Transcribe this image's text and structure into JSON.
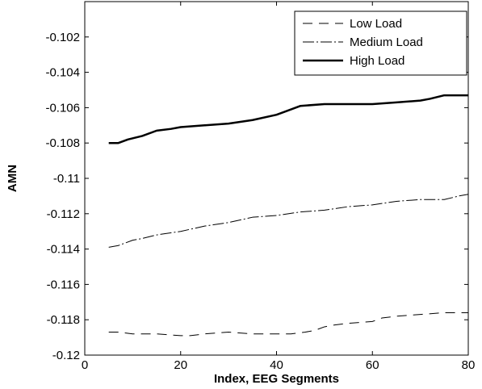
{
  "chart_data": {
    "type": "line",
    "title": "",
    "xlabel": "Index, EEG Segments",
    "ylabel": "AMN",
    "xlim": [
      0,
      80
    ],
    "ylim": [
      -0.12,
      -0.1
    ],
    "x_ticks": [
      0,
      20,
      40,
      60,
      80
    ],
    "x_tick_labels": [
      "0",
      "20",
      "40",
      "60",
      "80"
    ],
    "y_ticks": [
      -0.12,
      -0.118,
      -0.116,
      -0.114,
      -0.112,
      -0.11,
      -0.108,
      -0.106,
      -0.104,
      -0.102
    ],
    "y_tick_labels": [
      "-0.12",
      "-0.118",
      "-0.116",
      "-0.114",
      "-0.112",
      "-0.11",
      "-0.108",
      "-0.106",
      "-0.104",
      "-0.102"
    ],
    "grid": false,
    "legend_position": "top-right",
    "series": [
      {
        "name": "Low Load",
        "style": "dashed",
        "line_width": "thin",
        "points": [
          [
            5,
            -0.1187
          ],
          [
            7,
            -0.1187
          ],
          [
            10,
            -0.1188
          ],
          [
            15,
            -0.1188
          ],
          [
            20,
            -0.1189
          ],
          [
            22,
            -0.1189
          ],
          [
            25,
            -0.1188
          ],
          [
            30,
            -0.1187
          ],
          [
            35,
            -0.1188
          ],
          [
            40,
            -0.1188
          ],
          [
            43,
            -0.1188
          ],
          [
            46,
            -0.1187
          ],
          [
            48,
            -0.1186
          ],
          [
            50,
            -0.1184
          ],
          [
            52,
            -0.1183
          ],
          [
            55,
            -0.1182
          ],
          [
            60,
            -0.1181
          ],
          [
            62,
            -0.1179
          ],
          [
            65,
            -0.1178
          ],
          [
            70,
            -0.1177
          ],
          [
            75,
            -0.1176
          ],
          [
            80,
            -0.1176
          ]
        ]
      },
      {
        "name": "Medium Load",
        "style": "dashdot",
        "line_width": "thin",
        "points": [
          [
            5,
            -0.1139
          ],
          [
            7,
            -0.1138
          ],
          [
            10,
            -0.1135
          ],
          [
            12,
            -0.1134
          ],
          [
            15,
            -0.1132
          ],
          [
            20,
            -0.113
          ],
          [
            25,
            -0.1127
          ],
          [
            30,
            -0.1125
          ],
          [
            35,
            -0.1122
          ],
          [
            40,
            -0.1121
          ],
          [
            45,
            -0.1119
          ],
          [
            50,
            -0.1118
          ],
          [
            55,
            -0.1116
          ],
          [
            60,
            -0.1115
          ],
          [
            65,
            -0.1113
          ],
          [
            70,
            -0.1112
          ],
          [
            75,
            -0.1112
          ],
          [
            78,
            -0.111
          ],
          [
            80,
            -0.1109
          ]
        ]
      },
      {
        "name": "High Load",
        "style": "solid",
        "line_width": "thick",
        "points": [
          [
            5,
            -0.108
          ],
          [
            7,
            -0.108
          ],
          [
            9,
            -0.1078
          ],
          [
            12,
            -0.1076
          ],
          [
            15,
            -0.1073
          ],
          [
            18,
            -0.1072
          ],
          [
            20,
            -0.1071
          ],
          [
            25,
            -0.107
          ],
          [
            30,
            -0.1069
          ],
          [
            35,
            -0.1067
          ],
          [
            40,
            -0.1064
          ],
          [
            42,
            -0.1062
          ],
          [
            45,
            -0.1059
          ],
          [
            50,
            -0.1058
          ],
          [
            55,
            -0.1058
          ],
          [
            60,
            -0.1058
          ],
          [
            65,
            -0.1057
          ],
          [
            70,
            -0.1056
          ],
          [
            72,
            -0.1055
          ],
          [
            75,
            -0.1053
          ],
          [
            80,
            -0.1053
          ]
        ]
      }
    ]
  }
}
